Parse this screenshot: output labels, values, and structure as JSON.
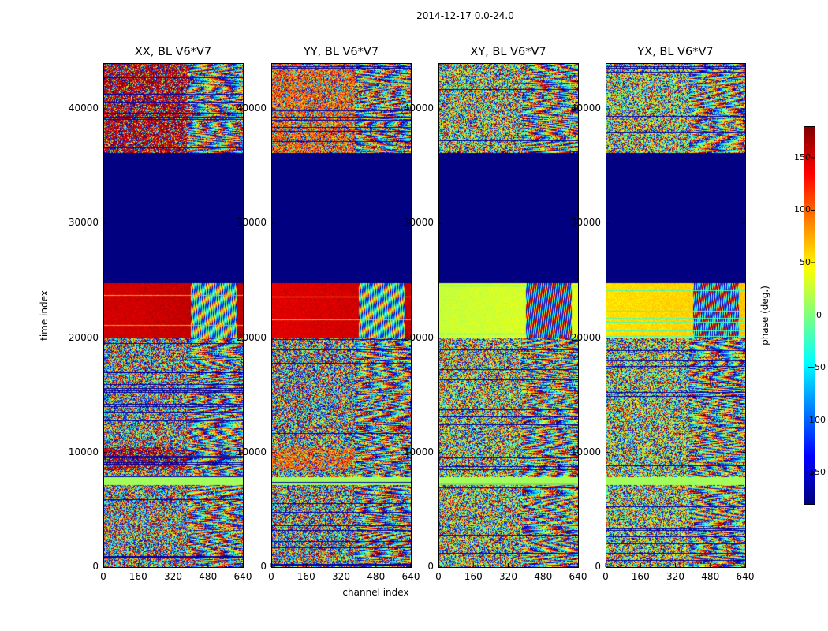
{
  "figure": {
    "suptitle": "2014-12-17 0.0-24.0",
    "ylabel": "time index",
    "xlabel": "channel index",
    "colorbar_label": "phase (deg.)"
  },
  "chart_data": [
    {
      "type": "heatmap",
      "title": "XX, BL V6*V7",
      "xlabel": "channel index",
      "ylabel": "time index",
      "xlim": [
        0,
        640
      ],
      "ylim": [
        0,
        44000
      ],
      "xticks": [
        0,
        160,
        320,
        480,
        640
      ],
      "yticks": [
        0,
        10000,
        20000,
        30000,
        40000
      ],
      "colormap": "jet",
      "value_range": [
        -180,
        180
      ],
      "bands": [
        {
          "time_range": [
            36200,
            44000
          ],
          "description": "noisy, red-biased low channels (~160 deg)"
        },
        {
          "time_range": [
            24800,
            36200
          ],
          "description": "flagged, constant -180 deg"
        },
        {
          "time_range": [
            20000,
            24800
          ],
          "description": "coherent ~150 deg, fringing above channel 400"
        },
        {
          "time_range": [
            0,
            20000
          ],
          "description": "noisy phase, fringes at high channels"
        }
      ]
    },
    {
      "type": "heatmap",
      "title": "YY, BL V6*V7",
      "xlabel": "channel index",
      "ylabel": "time index",
      "xlim": [
        0,
        640
      ],
      "ylim": [
        0,
        44000
      ],
      "xticks": [
        0,
        160,
        320,
        480,
        640
      ],
      "yticks": [
        0,
        10000,
        20000,
        30000,
        40000
      ],
      "colormap": "jet",
      "value_range": [
        -180,
        180
      ],
      "bands": [
        {
          "time_range": [
            36200,
            44000
          ],
          "description": "noisy, orange-biased"
        },
        {
          "time_range": [
            24800,
            36200
          ],
          "description": "flagged, constant -180 deg"
        },
        {
          "time_range": [
            20000,
            24800
          ],
          "description": "coherent ~140 deg"
        },
        {
          "time_range": [
            0,
            20000
          ],
          "description": "noisy phase"
        }
      ]
    },
    {
      "type": "heatmap",
      "title": "XY, BL V6*V7",
      "xlabel": "channel index",
      "ylabel": "time index",
      "xlim": [
        0,
        640
      ],
      "ylim": [
        0,
        44000
      ],
      "xticks": [
        0,
        160,
        320,
        480,
        640
      ],
      "yticks": [
        0,
        10000,
        20000,
        30000,
        40000
      ],
      "colormap": "jet",
      "value_range": [
        -180,
        180
      ],
      "bands": [
        {
          "time_range": [
            36200,
            44000
          ],
          "description": "noisy phase"
        },
        {
          "time_range": [
            24800,
            36200
          ],
          "description": "flagged, constant -180 deg"
        },
        {
          "time_range": [
            20000,
            24800
          ],
          "description": "coherent ~20-40 deg"
        },
        {
          "time_range": [
            0,
            20000
          ],
          "description": "noisy phase"
        }
      ]
    },
    {
      "type": "heatmap",
      "title": "YX, BL V6*V7",
      "xlabel": "channel index",
      "ylabel": "time index",
      "xlim": [
        0,
        640
      ],
      "ylim": [
        0,
        44000
      ],
      "xticks": [
        0,
        160,
        320,
        480,
        640
      ],
      "yticks": [
        0,
        10000,
        20000,
        30000,
        40000
      ],
      "colormap": "jet",
      "value_range": [
        -180,
        180
      ],
      "bands": [
        {
          "time_range": [
            36200,
            44000
          ],
          "description": "noisy phase"
        },
        {
          "time_range": [
            24800,
            36200
          ],
          "description": "flagged, constant -180 deg"
        },
        {
          "time_range": [
            20000,
            24800
          ],
          "description": "coherent ~50-60 deg"
        },
        {
          "time_range": [
            0,
            20000
          ],
          "description": "noisy phase"
        }
      ]
    }
  ],
  "colorbar": {
    "ticks": [
      150,
      100,
      50,
      0,
      -50,
      -100,
      -150
    ],
    "tick_labels": [
      "150",
      "100",
      "50",
      "0",
      "−50",
      "−100",
      "−150"
    ],
    "range": [
      -180,
      180
    ]
  },
  "tick_labels": {
    "x": [
      "0",
      "160",
      "320",
      "480",
      "640"
    ],
    "y": [
      "0",
      "10000",
      "20000",
      "30000",
      "40000"
    ]
  }
}
